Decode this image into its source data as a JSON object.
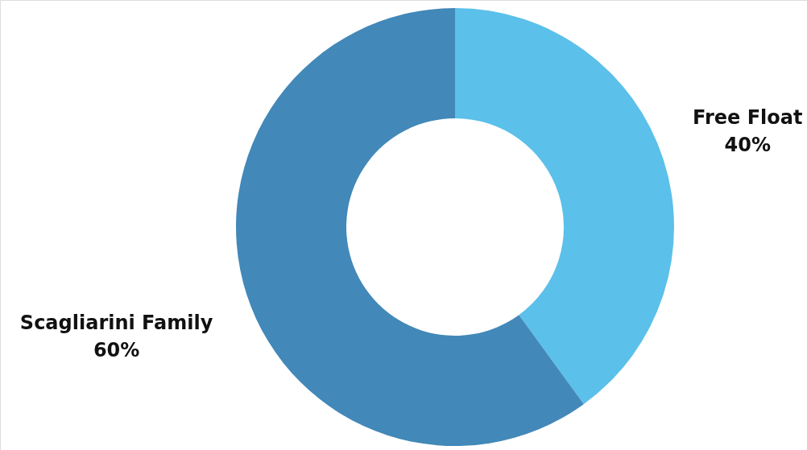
{
  "chart_data": {
    "type": "donut",
    "categories": [
      "Free Float",
      "Scagliarini Family"
    ],
    "values": [
      40,
      60
    ],
    "value_labels": [
      "40%",
      "60%"
    ],
    "colors": [
      "#5bc0ea",
      "#4288b9"
    ]
  }
}
